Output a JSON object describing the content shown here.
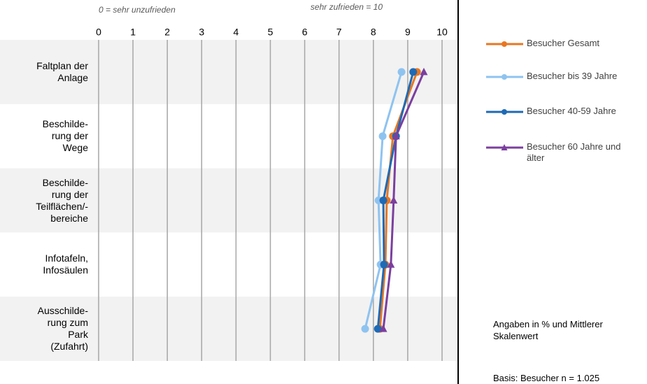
{
  "chart_data": {
    "type": "line",
    "orientation": "horizontal",
    "axis_annotations": [
      "0 = sehr unzufrieden",
      "sehr zufrieden = 10"
    ],
    "categories": [
      "Faltplan der\nAnlage",
      "Beschilde-\nrung der\nWege",
      "Beschilde-\nrung der\nTeilflächen/-\nbereiche",
      "Infotafeln,\nInfosäulen",
      "Ausschilde-\nrung zum\nPark\n(Zufahrt)"
    ],
    "series": [
      {
        "name": "Besucher Gesamt",
        "color": "#e87722",
        "marker": "circle",
        "values": [
          9.27,
          8.57,
          8.39,
          8.35,
          8.19
        ]
      },
      {
        "name": "Besucher bis 39 Jahre",
        "color": "#8ec3f0",
        "marker": "circle",
        "values": [
          8.82,
          8.27,
          8.15,
          8.21,
          7.76
        ]
      },
      {
        "name": "Besucher 40-59 Jahre",
        "color": "#1f6ab5",
        "marker": "circle",
        "values": [
          9.16,
          8.66,
          8.29,
          8.31,
          8.13
        ]
      },
      {
        "name": "Besucher 60 Jahre und älter",
        "color": "#7b3f9e",
        "marker": "triangle",
        "values": [
          9.47,
          8.66,
          8.59,
          8.51,
          8.29
        ]
      }
    ],
    "xlim": [
      0,
      10
    ],
    "xticks": [
      0,
      1,
      2,
      3,
      4,
      5,
      6,
      7,
      8,
      9,
      10
    ],
    "grid": true,
    "notes": [
      "Angaben in % und Mittlerer Skalenwert",
      "Basis: Besucher n = 1.025"
    ]
  }
}
